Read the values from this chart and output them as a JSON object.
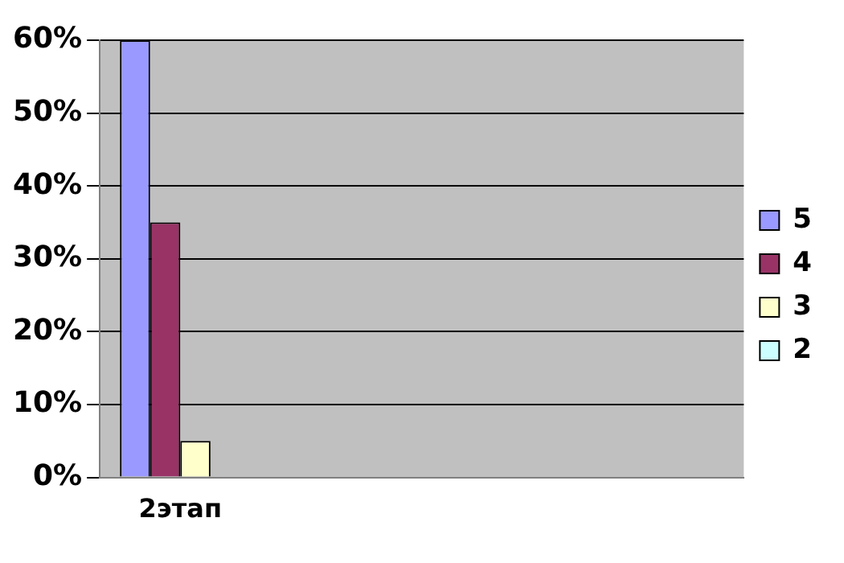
{
  "chart_data": {
    "type": "bar",
    "categories": [
      "2этап",
      null,
      null,
      null
    ],
    "series": [
      {
        "name": "5",
        "color": "#9999ff",
        "values": [
          60,
          null,
          null,
          null
        ]
      },
      {
        "name": "4",
        "color": "#993366",
        "values": [
          35,
          null,
          null,
          null
        ]
      },
      {
        "name": "3",
        "color": "#ffffcc",
        "values": [
          5,
          null,
          null,
          null
        ]
      },
      {
        "name": "2",
        "color": "#ccffff",
        "values": [
          0,
          null,
          null,
          null
        ]
      }
    ],
    "ylim": [
      0,
      60
    ],
    "yticks": [
      {
        "value": 0,
        "label": "0%"
      },
      {
        "value": 10,
        "label": "10%"
      },
      {
        "value": 20,
        "label": "20%"
      },
      {
        "value": 30,
        "label": "30%"
      },
      {
        "value": 40,
        "label": "40%"
      },
      {
        "value": 50,
        "label": "50%"
      },
      {
        "value": 60,
        "label": "60%"
      }
    ],
    "grid": "y",
    "legend": "right"
  }
}
